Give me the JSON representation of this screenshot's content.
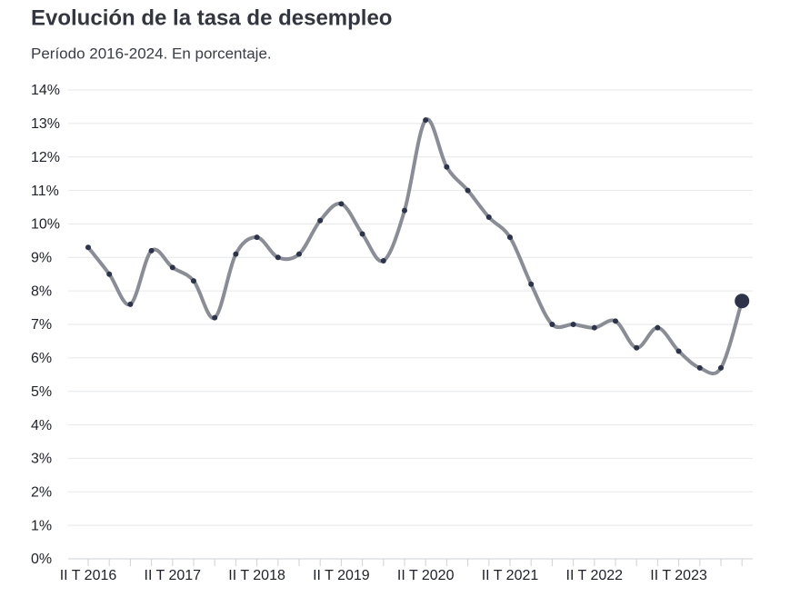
{
  "chart_data": {
    "type": "line",
    "title": "Evolución de la tasa de desempleo",
    "subtitle": "Período 2016-2024. En porcentaje.",
    "categories": [
      "II T 2016",
      null,
      null,
      null,
      "II T 2017",
      null,
      null,
      null,
      "II T 2018",
      null,
      null,
      null,
      "II T 2019",
      null,
      null,
      null,
      "II T 2020",
      null,
      null,
      null,
      "II T 2021",
      null,
      null,
      null,
      "II T 2022",
      null,
      null,
      null,
      "II T 2023",
      null,
      null,
      null
    ],
    "series": [
      {
        "color": "#8a8d96",
        "marker_color": "#2d3348",
        "values": [
          9.3,
          8.5,
          7.6,
          9.2,
          8.7,
          8.3,
          7.2,
          9.1,
          9.6,
          9.0,
          9.1,
          10.1,
          10.6,
          9.7,
          8.9,
          10.4,
          13.1,
          11.7,
          11.0,
          10.2,
          9.6,
          8.2,
          7.0,
          7.0,
          6.9,
          7.1,
          6.3,
          6.9,
          6.2,
          5.7,
          5.7,
          7.7
        ]
      }
    ],
    "ylim": [
      0,
      14
    ],
    "yticks": [
      {
        "value": 0,
        "label": "0%"
      },
      {
        "value": 1,
        "label": "1%"
      },
      {
        "value": 2,
        "label": "2%"
      },
      {
        "value": 3,
        "label": "3%"
      },
      {
        "value": 4,
        "label": "4%"
      },
      {
        "value": 5,
        "label": "5%"
      },
      {
        "value": 6,
        "label": "6%"
      },
      {
        "value": 7,
        "label": "7%"
      },
      {
        "value": 8,
        "label": "8%"
      },
      {
        "value": 9,
        "label": "9%"
      },
      {
        "value": 10,
        "label": "10%"
      },
      {
        "value": 11,
        "label": "11%"
      },
      {
        "value": 12,
        "label": "12%"
      },
      {
        "value": 13,
        "label": "13%"
      },
      {
        "value": 14,
        "label": "14%"
      }
    ],
    "grid": true,
    "smooth": true
  }
}
